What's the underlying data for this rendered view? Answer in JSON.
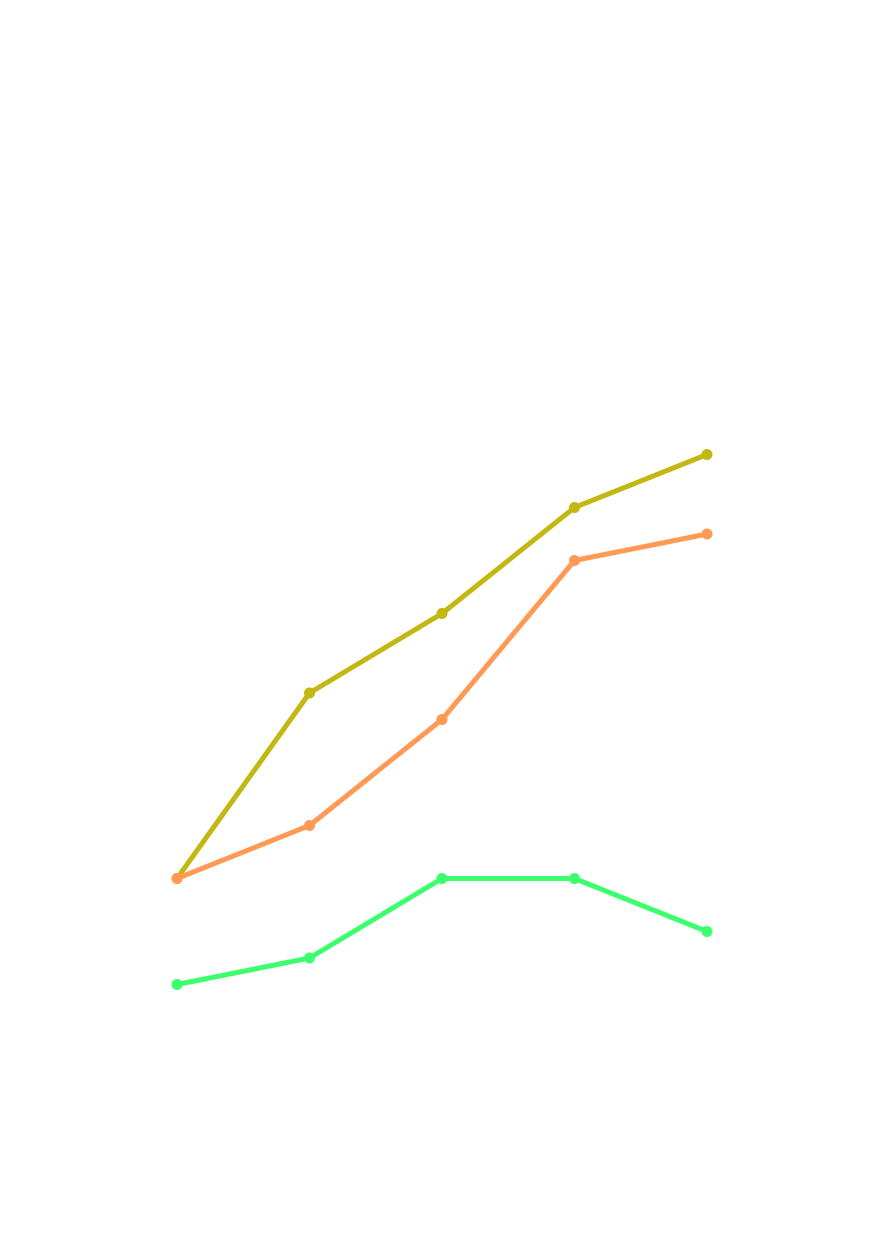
{
  "chart_data": {
    "type": "line",
    "title": "",
    "xlabel": "",
    "ylabel": "",
    "x": [
      1,
      2,
      3,
      4,
      5
    ],
    "ylim": [
      0,
      12
    ],
    "grid": false,
    "legend": "none",
    "axes_visible": false,
    "series": [
      {
        "color": "#C2B811",
        "values": [
          4.5,
          8.0,
          9.5,
          11.5,
          12.5
        ]
      },
      {
        "color": "#FF9A55",
        "values": [
          4.5,
          5.5,
          7.5,
          10.5,
          11.0
        ]
      },
      {
        "color": "#3CFF6E",
        "values": [
          2.5,
          3.0,
          4.5,
          4.5,
          3.5
        ]
      }
    ]
  }
}
